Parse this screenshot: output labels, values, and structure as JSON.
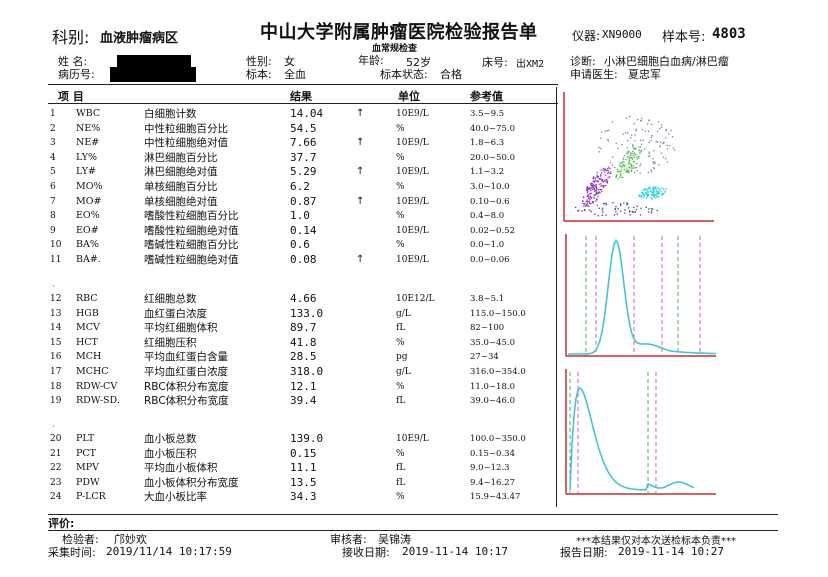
{
  "header": {
    "dept_label": "科别:",
    "dept_value": "血液肿瘤病区",
    "hospital_title": "中山大学附属肿瘤医院检验报告单",
    "sub_title": "血常规检查",
    "instrument_label": "仪器:",
    "instrument_value": "XN9000",
    "sample_label": "样本号:",
    "sample_value": "4803"
  },
  "patient": {
    "name_label": "姓   名:",
    "record_label": "病历号:",
    "sex_label": "性别:",
    "sex_value": "女",
    "specimen_label": "标本:",
    "specimen_value": "全血",
    "age_label": "年龄:",
    "age_value": "52岁",
    "bed_label": "床号:",
    "bed_value": "出XM2",
    "status_label": "标本状态:",
    "status_value": "合格",
    "diag_label": "诊断:",
    "diag_value": "小淋巴细胞白血病/淋巴瘤",
    "doctor_label": "申请医生:",
    "doctor_value": "夏忠军"
  },
  "table_header": {
    "item": "项  目",
    "result": "结果",
    "unit": "单位",
    "ref": "参考值"
  },
  "rows": [
    {
      "no": "1",
      "code": "WBC",
      "name": "白细胞计数",
      "value": "14.04",
      "flag": "↑",
      "unit": "10E9/L",
      "ref": "3.5~9.5"
    },
    {
      "no": "2",
      "code": "NE%",
      "name": "中性粒细胞百分比",
      "value": "54.5",
      "flag": "",
      "unit": "%",
      "ref": "40.0~75.0"
    },
    {
      "no": "3",
      "code": "NE#",
      "name": "中性粒细胞绝对值",
      "value": "7.66",
      "flag": "↑",
      "unit": "10E9/L",
      "ref": "1.8~6.3"
    },
    {
      "no": "4",
      "code": "LY%",
      "name": "淋巴细胞百分比",
      "value": "37.7",
      "flag": "",
      "unit": "%",
      "ref": "20.0~50.0"
    },
    {
      "no": "5",
      "code": "LY#",
      "name": "淋巴细胞绝对值",
      "value": "5.29",
      "flag": "↑",
      "unit": "10E9/L",
      "ref": "1.1~3.2"
    },
    {
      "no": "6",
      "code": "MO%",
      "name": "单核细胞百分比",
      "value": "6.2",
      "flag": "",
      "unit": "%",
      "ref": "3.0~10.0"
    },
    {
      "no": "7",
      "code": "MO#",
      "name": "单核细胞绝对值",
      "value": "0.87",
      "flag": "↑",
      "unit": "10E9/L",
      "ref": "0.10~0.6"
    },
    {
      "no": "8",
      "code": "EO%",
      "name": "嗜酸性粒细胞百分比",
      "value": "1.0",
      "flag": "",
      "unit": "%",
      "ref": "0.4~8.0"
    },
    {
      "no": "9",
      "code": "EO#",
      "name": "嗜酸性粒细胞绝对值",
      "value": "0.14",
      "flag": "",
      "unit": "10E9/L",
      "ref": "0.02~0.52"
    },
    {
      "no": "10",
      "code": "BA%",
      "name": "嗜碱性粒细胞百分比",
      "value": "0.6",
      "flag": "",
      "unit": "%",
      "ref": "0.0~1.0"
    },
    {
      "no": "11",
      "code": "BA#.",
      "name": "嗜碱性粒细胞绝对值",
      "value": "0.08",
      "flag": "↑",
      "unit": "10E9/L",
      "ref": "0.0~0.06"
    },
    {
      "no": "12",
      "code": "RBC",
      "name": "红细胞总数",
      "value": "4.66",
      "flag": "",
      "unit": "10E12/L",
      "ref": "3.8~5.1"
    },
    {
      "no": "13",
      "code": "HGB",
      "name": "血红蛋白浓度",
      "value": "133.0",
      "flag": "",
      "unit": "g/L",
      "ref": "115.0~150.0"
    },
    {
      "no": "14",
      "code": "MCV",
      "name": "平均红细胞体积",
      "value": "89.7",
      "flag": "",
      "unit": "fL",
      "ref": "82~100"
    },
    {
      "no": "15",
      "code": "HCT",
      "name": "红细胞压积",
      "value": "41.8",
      "flag": "",
      "unit": "%",
      "ref": "35.0~45.0"
    },
    {
      "no": "16",
      "code": "MCH",
      "name": "平均血红蛋白含量",
      "value": "28.5",
      "flag": "",
      "unit": "pg",
      "ref": "27~34"
    },
    {
      "no": "17",
      "code": "MCHC",
      "name": "平均血红蛋白浓度",
      "value": "318.0",
      "flag": "",
      "unit": "g/L",
      "ref": "316.0~354.0"
    },
    {
      "no": "18",
      "code": "RDW-CV",
      "name": "RBC体积分布宽度",
      "value": "12.1",
      "flag": "",
      "unit": "%",
      "ref": "11.0~18.0"
    },
    {
      "no": "19",
      "code": "RDW-SD.",
      "name": "RBC体积分布宽度",
      "value": "39.4",
      "flag": "",
      "unit": "fL",
      "ref": "39.0~46.0"
    },
    {
      "no": "20",
      "code": "PLT",
      "name": "血小板总数",
      "value": "139.0",
      "flag": "",
      "unit": "10E9/L",
      "ref": "100.0~350.0"
    },
    {
      "no": "21",
      "code": "PCT",
      "name": "血小板压积",
      "value": "0.15",
      "flag": "",
      "unit": "%",
      "ref": "0.15~0.34"
    },
    {
      "no": "22",
      "code": "MPV",
      "name": "平均血小板体积",
      "value": "11.1",
      "flag": "",
      "unit": "fL",
      "ref": "9.0~12.3"
    },
    {
      "no": "23",
      "code": "PDW",
      "name": "血小板体积分布宽度",
      "value": "13.5",
      "flag": "",
      "unit": "fL",
      "ref": "9.4~16.27"
    },
    {
      "no": "24",
      "code": "P-LCR",
      "name": "大血小板比率",
      "value": "34.3",
      "flag": "",
      "unit": "%",
      "ref": "15.9~43.47"
    }
  ],
  "footer": {
    "comment_label": "评价:",
    "tester_label": "检验者:",
    "tester_value": "邝妙欢",
    "reviewer_label": "审核者:",
    "reviewer_value": "吴锦涛",
    "disclaimer": "***本结果仅对本次送检标本负责***",
    "collect_label": "采集时间:",
    "collect_value": "2019/11/14 10:17:59",
    "receive_label": "接收日期:",
    "receive_value": "2019-11-14 10:17",
    "report_label": "报告日期:",
    "report_value": "2019-11-14 10:27"
  },
  "colors": {
    "axis": "#cc2b2b",
    "curve": "#3ec7d6",
    "gate_pink": "#e052d8",
    "gate_green": "#47b64a",
    "scatter_purple": "#8a2bd6",
    "scatter_cyan": "#2ad2d8",
    "scatter_green": "#52c24a"
  }
}
